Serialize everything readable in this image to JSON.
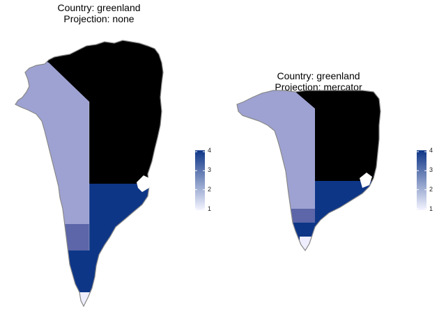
{
  "panels": [
    {
      "title_line1": "Country: greenland",
      "title_line2": "Projection: none",
      "legend": {
        "min": 1,
        "max": 4,
        "ticks": [
          "4",
          "3",
          "2",
          "1"
        ]
      },
      "regions": [
        {
          "value": 4,
          "color": "#000000"
        },
        {
          "value": 3,
          "color": "#0e3687"
        },
        {
          "value": 2,
          "color": "#9ea2d2"
        },
        {
          "value": 2.5,
          "color": "#5c66a8"
        },
        {
          "value": 1,
          "color": "#eeeeff"
        }
      ]
    },
    {
      "title_line1": "Country: greenland",
      "title_line2": "Projection: mercator",
      "legend": {
        "min": 1,
        "max": 4,
        "ticks": [
          "4",
          "3",
          "2",
          "1"
        ]
      },
      "regions": [
        {
          "value": 4,
          "color": "#000000"
        },
        {
          "value": 3,
          "color": "#0e3687"
        },
        {
          "value": 2,
          "color": "#9ea2d2"
        },
        {
          "value": 2.5,
          "color": "#5c66a8"
        },
        {
          "value": 1,
          "color": "#eeeeff"
        }
      ]
    }
  ],
  "colors": {
    "coast_outline": "#888888",
    "legend_low": "#f4f4ff",
    "legend_high": "#0e3687"
  }
}
